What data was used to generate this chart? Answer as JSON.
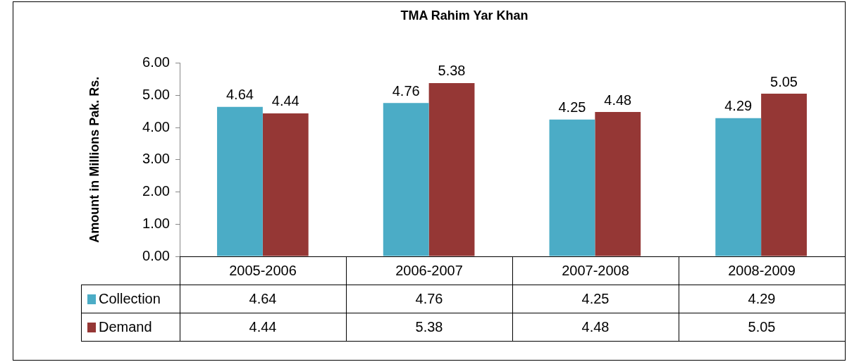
{
  "chart_data": {
    "type": "bar",
    "title": "TMA Rahim Yar Khan",
    "ylabel": "Amount in Millions Pak. Rs.",
    "categories": [
      "2005-2006",
      "2006-2007",
      "2007-2008",
      "2008-2009"
    ],
    "series": [
      {
        "name": "Collection",
        "color": "#4bacc6",
        "values": [
          4.64,
          4.76,
          4.25,
          4.29
        ],
        "value_labels": [
          "4.64",
          "4.76",
          "4.25",
          "4.29"
        ]
      },
      {
        "name": "Demand",
        "color": "#953735",
        "values": [
          4.44,
          5.38,
          4.48,
          5.05
        ],
        "value_labels": [
          "4.44",
          "5.38",
          "4.48",
          "5.05"
        ]
      }
    ],
    "ylim": [
      0,
      6
    ],
    "yticks": [
      {
        "value": 0,
        "label": "0.00"
      },
      {
        "value": 1,
        "label": "1.00"
      },
      {
        "value": 2,
        "label": "2.00"
      },
      {
        "value": 3,
        "label": "3.00"
      },
      {
        "value": 4,
        "label": "4.00"
      },
      {
        "value": 5,
        "label": "5.00"
      },
      {
        "value": 6,
        "label": "6.00"
      }
    ],
    "grid": false,
    "legend": "bottom",
    "annotations": [
      {
        "text": "4.64",
        "x": "2005-2006",
        "y": 4.64
      },
      {
        "text": "4.44",
        "x": "2005-2006",
        "y": 4.44
      },
      {
        "text": "4.76",
        "x": "2006-2007",
        "y": 4.76
      },
      {
        "text": "5.38",
        "x": "2006-2007",
        "y": 5.38
      },
      {
        "text": "4.25",
        "x": "2007-2008",
        "y": 4.25
      },
      {
        "text": "4.48",
        "x": "2007-2008",
        "y": 4.48
      },
      {
        "text": "4.29",
        "x": "2008-2009",
        "y": 4.29
      },
      {
        "text": "5.05",
        "x": "2008-2009",
        "y": 5.05
      }
    ]
  }
}
